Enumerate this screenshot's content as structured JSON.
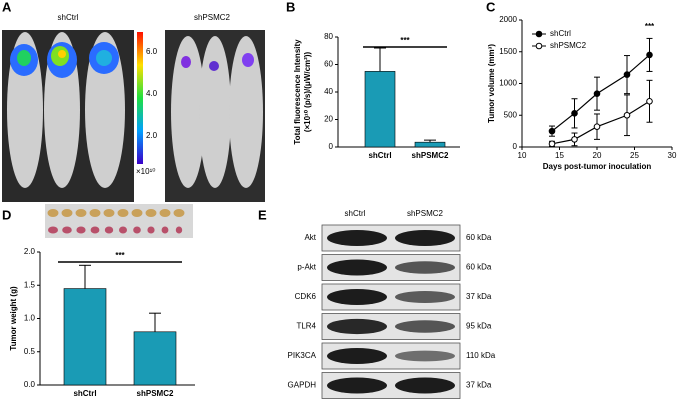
{
  "panel_labels": [
    "A",
    "B",
    "C",
    "D",
    "E"
  ],
  "panel_a": {
    "groups": [
      "shCtrl",
      "shPSMC2"
    ],
    "colorbar_labels": [
      "6.0",
      "4.0",
      "2.0"
    ],
    "colorbar_unit": "×10¹⁰"
  },
  "chart_data": [
    {
      "type": "bar",
      "ylabel": [
        "Total fluorescence Intensity",
        "(×10¹⁰ (p/s)/(μW/cm²))"
      ],
      "categories": [
        "shCtrl",
        "shPSMC2"
      ],
      "values": [
        55,
        3.5
      ],
      "errors": [
        17,
        1.5
      ],
      "color": "#1a9bb5",
      "ylim": [
        0,
        80
      ],
      "yticks": [
        0,
        20,
        40,
        60,
        80
      ],
      "annotation": "***"
    },
    {
      "type": "line",
      "xlabel": "Days post-tumor inoculation",
      "ylabel": "Tumor volume (mm³)",
      "x": [
        14,
        17,
        20,
        24,
        27
      ],
      "series": [
        {
          "name": "shCtrl",
          "color": "#000000",
          "marker": "filled",
          "values": [
            250,
            530,
            840,
            1140,
            1450
          ],
          "errors": [
            80,
            230,
            260,
            300,
            260
          ]
        },
        {
          "name": "shPSMC2",
          "color": "#000000",
          "marker": "open",
          "values": [
            50,
            120,
            320,
            500,
            720
          ],
          "errors": [
            40,
            100,
            200,
            320,
            330
          ]
        }
      ],
      "xlim": [
        10,
        30
      ],
      "xticks": [
        10,
        15,
        20,
        25,
        30
      ],
      "ylim": [
        0,
        2000
      ],
      "yticks": [
        0,
        500,
        1000,
        1500,
        2000
      ],
      "legend": "upper left",
      "annotation": "***"
    },
    {
      "type": "bar",
      "ylabel": "Tumor weight (g)",
      "categories": [
        "shCtrl",
        "shPSMC2"
      ],
      "values": [
        1.45,
        0.8
      ],
      "errors": [
        0.35,
        0.28
      ],
      "color": "#1a9bb5",
      "ylim": [
        0,
        2.0
      ],
      "yticks": [
        {
          "value": 0,
          "label": "0.0"
        },
        {
          "value": 0.5,
          "label": "0.5"
        },
        {
          "value": 1,
          "label": "1.0"
        },
        {
          "value": 1.5,
          "label": "1.5"
        },
        {
          "value": 2,
          "label": "2.0"
        }
      ],
      "annotation": "***"
    }
  ],
  "panel_e": {
    "columns": [
      "shCtrl",
      "shPSMC2"
    ],
    "rows": [
      {
        "protein": "Akt",
        "size": "60 kDa"
      },
      {
        "protein": "p-Akt",
        "size": "60 kDa"
      },
      {
        "protein": "CDK6",
        "size": "37 kDa"
      },
      {
        "protein": "TLR4",
        "size": "95 kDa"
      },
      {
        "protein": "PIK3CA",
        "size": "110 kDa"
      },
      {
        "protein": "GAPDH",
        "size": "37 kDa"
      }
    ]
  }
}
